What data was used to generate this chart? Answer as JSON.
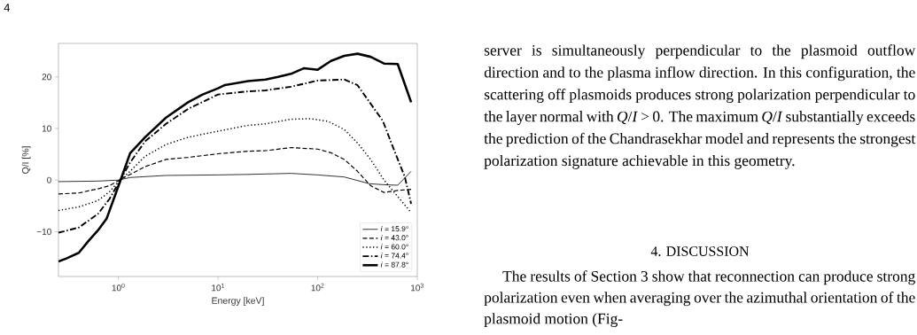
{
  "chart_data": {
    "type": "line",
    "xlabel": "Energy [keV]",
    "ylabel": "Q/I [%]",
    "log": "x",
    "xlim": [
      0.25,
      1000
    ],
    "ylim": [
      -18.7,
      26.5
    ],
    "xticks": [
      {
        "value": 1,
        "label": "10$^{0}$"
      },
      {
        "value": 10,
        "label": "10$^{1}$"
      },
      {
        "value": 100,
        "label": "10$^{2}$"
      },
      {
        "value": 1000,
        "label": "10$^{3}$"
      }
    ],
    "yticks": [
      {
        "value": -10,
        "label": "−10"
      },
      0,
      10,
      20
    ],
    "grid": false,
    "legend": "bottom right",
    "marker": "none",
    "series": [
      {
        "name": "*i* = 15.9°",
        "color": "#000000",
        "line_style": "solid",
        "x": [
          0.25,
          0.62,
          1.0,
          1.31,
          3.0,
          10,
          20,
          54,
          100,
          185,
          329,
          463,
          636,
          867
        ],
        "values": [
          -0.3,
          -0.2,
          0,
          0.5,
          0.9,
          1.0,
          1.1,
          1.3,
          1.0,
          0.6,
          -0.7,
          -0.9,
          -1.0,
          1.7
        ]
      },
      {
        "name": "*i* = 43.0°",
        "color": "#000000",
        "line_style": "dashed",
        "x": [
          0.25,
          0.4,
          0.62,
          0.81,
          1.0,
          1.31,
          1.85,
          3.0,
          5.0,
          10,
          20,
          30,
          54,
          100,
          136,
          185,
          251,
          340,
          463,
          636,
          867
        ],
        "values": [
          -2.7,
          -2.5,
          -1.7,
          -1.1,
          -0.1,
          1.1,
          2.6,
          4.0,
          4.4,
          5.1,
          5.6,
          5.7,
          6.3,
          6.0,
          5.3,
          4.0,
          1.7,
          -1.1,
          -2.4,
          -2.0,
          -1.8
        ]
      },
      {
        "name": "*i* = 60.0°",
        "color": "#000000",
        "line_style": "dotted",
        "x": [
          0.25,
          0.4,
          0.62,
          0.81,
          1.0,
          1.31,
          1.85,
          3.0,
          5.0,
          10,
          20,
          30,
          54,
          84,
          127,
          185,
          251,
          340,
          463,
          636,
          867
        ],
        "values": [
          -5.9,
          -5.2,
          -4.0,
          -2.3,
          -0.3,
          1.7,
          4.6,
          6.9,
          8.3,
          9.5,
          10.6,
          10.9,
          11.8,
          11.9,
          11.4,
          9.8,
          7.2,
          4.0,
          0,
          -3.2,
          -6.3
        ]
      },
      {
        "name": "*i* = 74.4°",
        "color": "#000000",
        "line_style": "dashdot",
        "x": [
          0.25,
          0.4,
          0.62,
          0.81,
          1.0,
          1.31,
          1.85,
          3.0,
          5.0,
          10,
          20,
          30,
          54,
          100,
          185,
          251,
          329,
          450,
          588,
          750,
          867
        ],
        "values": [
          -10.2,
          -9.2,
          -6.6,
          -3.7,
          -0.6,
          3.4,
          7.5,
          10.9,
          13.8,
          16.6,
          17.2,
          17.4,
          18.1,
          19.3,
          19.5,
          18.4,
          15.2,
          11.5,
          5.7,
          0.6,
          -4.6
        ]
      },
      {
        "name": "*i* = 87.8°",
        "color": "#000000",
        "line_style": "solid",
        "x": [
          0.25,
          0.3,
          0.4,
          0.5,
          0.62,
          0.76,
          1.05,
          1.31,
          1.85,
          3.0,
          5.0,
          7.0,
          10,
          11.6,
          20,
          30,
          40,
          54,
          73,
          100,
          136,
          185,
          251,
          340,
          463,
          636,
          867
        ],
        "values": [
          -15.8,
          -15.2,
          -14.1,
          -11.8,
          -9.8,
          -7.5,
          0,
          5.2,
          8.3,
          12.1,
          15.1,
          16.6,
          17.8,
          18.4,
          19.2,
          19.5,
          20.0,
          20.6,
          21.7,
          21.4,
          23.1,
          24.1,
          24.5,
          23.9,
          22.6,
          22.5,
          15.1
        ]
      }
    ],
    "annotations": [
      "4",
      "server is simultaneously perpendicular to the plasmoid outflow direction and to the plasma inflow direction. In this configuration, the scattering off plasmoids produces strong polarization perpendicular to the layer normal with *Q*/*I* > 0. The maximum *Q*/*I* substantially exceeds the prediction of the Chandrasekhar model and represents the strongest polarization signature achievable in this geometry.",
      "4. DISCUSSION",
      "The results of Section 3 show that reconnection can produce strong polarization even when averaging over the azimuthal orientation of the plasmoid motion (Fig-"
    ]
  }
}
